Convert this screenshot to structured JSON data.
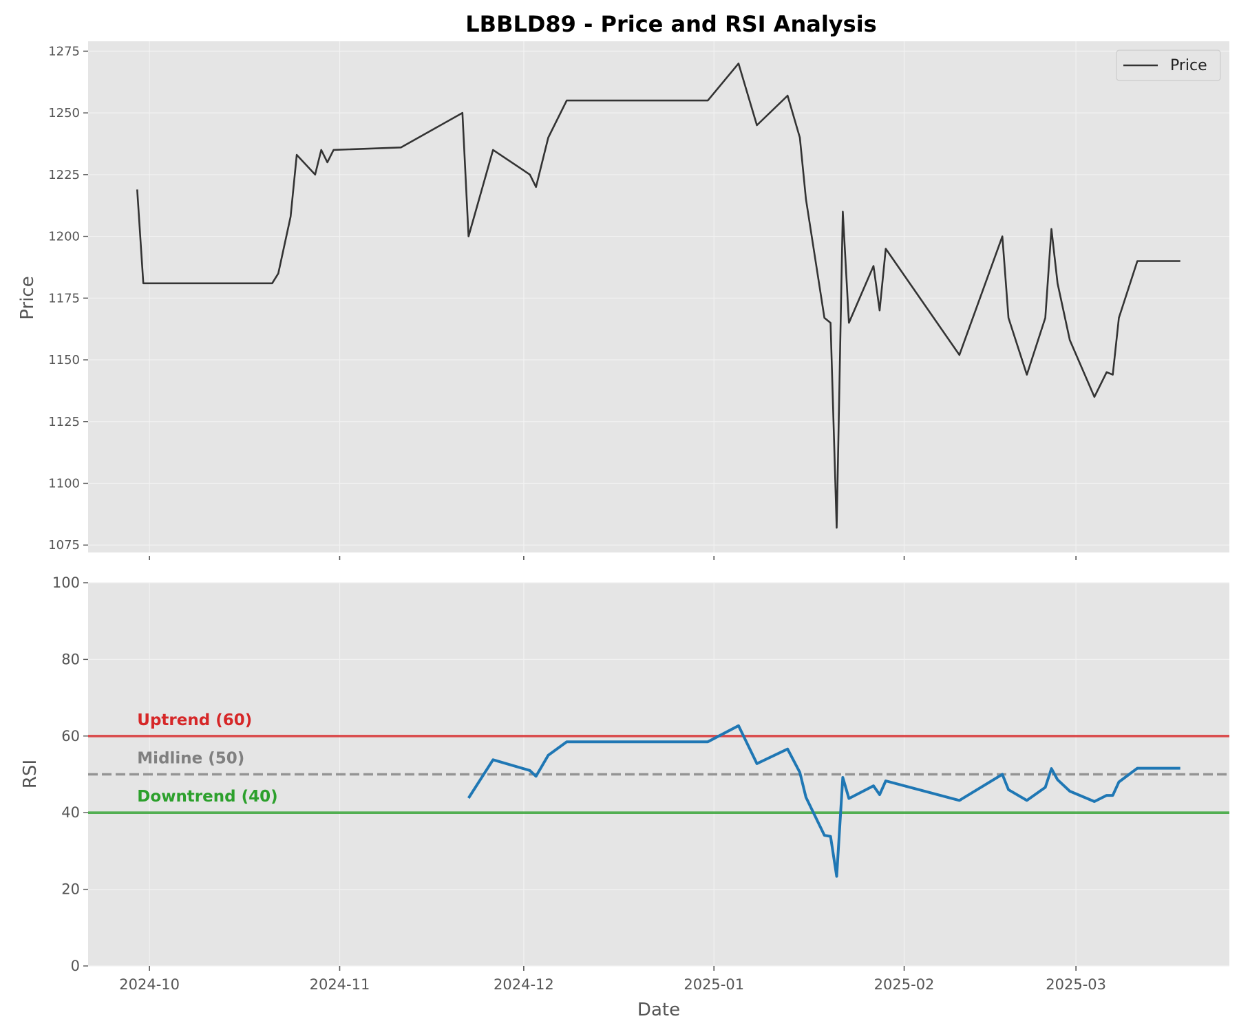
{
  "chart_data": [
    {
      "type": "line",
      "title": "LBBLD89 - Price and RSI Analysis",
      "ylabel": "Price",
      "xlim": [
        "2024-09-21",
        "2025-03-26"
      ],
      "ylim": [
        1072,
        1279
      ],
      "yticks": [
        1075,
        1100,
        1125,
        1150,
        1175,
        1200,
        1225,
        1250,
        1275
      ],
      "xticks": [
        "2024-10-01",
        "2024-11-01",
        "2024-12-01",
        "2025-01-01",
        "2025-02-01",
        "2025-03-01"
      ],
      "grid": true,
      "legend": "top-right",
      "series": [
        {
          "name": "Price",
          "color": "#333333",
          "points": [
            [
              "2024-09-29",
              1219
            ],
            [
              "2024-09-30",
              1181
            ],
            [
              "2024-10-21",
              1181
            ],
            [
              "2024-10-22",
              1185
            ],
            [
              "2024-10-24",
              1208
            ],
            [
              "2024-10-25",
              1233
            ],
            [
              "2024-10-28",
              1225
            ],
            [
              "2024-10-29",
              1235
            ],
            [
              "2024-10-30",
              1230
            ],
            [
              "2024-10-31",
              1235
            ],
            [
              "2024-11-11",
              1236
            ],
            [
              "2024-11-21",
              1250
            ],
            [
              "2024-11-22",
              1200
            ],
            [
              "2024-11-26",
              1235
            ],
            [
              "2024-12-02",
              1225
            ],
            [
              "2024-12-03",
              1220
            ],
            [
              "2024-12-05",
              1240
            ],
            [
              "2024-12-08",
              1255
            ],
            [
              "2024-12-31",
              1255
            ],
            [
              "2025-01-05",
              1270
            ],
            [
              "2025-01-08",
              1245
            ],
            [
              "2025-01-13",
              1257
            ],
            [
              "2025-01-15",
              1240
            ],
            [
              "2025-01-16",
              1215
            ],
            [
              "2025-01-19",
              1167
            ],
            [
              "2025-01-20",
              1165
            ],
            [
              "2025-01-21",
              1082
            ],
            [
              "2025-01-22",
              1210
            ],
            [
              "2025-01-23",
              1165
            ],
            [
              "2025-01-27",
              1188
            ],
            [
              "2025-01-28",
              1170
            ],
            [
              "2025-01-29",
              1195
            ],
            [
              "2025-02-10",
              1152
            ],
            [
              "2025-02-17",
              1200
            ],
            [
              "2025-02-18",
              1167
            ],
            [
              "2025-02-21",
              1144
            ],
            [
              "2025-02-24",
              1167
            ],
            [
              "2025-02-25",
              1203
            ],
            [
              "2025-02-26",
              1181
            ],
            [
              "2025-02-28",
              1158
            ],
            [
              "2025-03-04",
              1135
            ],
            [
              "2025-03-06",
              1145
            ],
            [
              "2025-03-07",
              1144
            ],
            [
              "2025-03-08",
              1167
            ],
            [
              "2025-03-11",
              1190
            ],
            [
              "2025-03-18",
              1190
            ]
          ]
        }
      ]
    },
    {
      "type": "line",
      "xlabel": "Date",
      "ylabel": "RSI",
      "xlim": [
        "2024-09-21",
        "2025-03-26"
      ],
      "ylim": [
        0,
        100
      ],
      "yticks": [
        0,
        20,
        40,
        60,
        80,
        100
      ],
      "xticks": [
        "2024-10-01",
        "2024-11-01",
        "2024-12-01",
        "2025-01-01",
        "2025-02-01",
        "2025-03-01"
      ],
      "xtick_labels": [
        "2024-10",
        "2024-11",
        "2024-12",
        "2025-01",
        "2025-02",
        "2025-03"
      ],
      "grid": true,
      "series": [
        {
          "color": "#1f77b4",
          "points": [
            [
              "2024-11-22",
              43.8
            ],
            [
              "2024-11-26",
              53.8
            ],
            [
              "2024-12-02",
              51
            ],
            [
              "2024-12-03",
              49.5
            ],
            [
              "2024-12-05",
              55
            ],
            [
              "2024-12-08",
              58.5
            ],
            [
              "2024-12-31",
              58.5
            ],
            [
              "2025-01-05",
              62.7
            ],
            [
              "2025-01-08",
              52.8
            ],
            [
              "2025-01-13",
              56.6
            ],
            [
              "2025-01-15",
              50.5
            ],
            [
              "2025-01-16",
              44
            ],
            [
              "2025-01-19",
              34.1
            ],
            [
              "2025-01-20",
              33.8
            ],
            [
              "2025-01-21",
              23.4
            ],
            [
              "2025-01-22",
              49.2
            ],
            [
              "2025-01-23",
              43.7
            ],
            [
              "2025-01-27",
              47
            ],
            [
              "2025-01-28",
              44.7
            ],
            [
              "2025-01-29",
              48.3
            ],
            [
              "2025-02-10",
              43.2
            ],
            [
              "2025-02-17",
              50
            ],
            [
              "2025-02-18",
              46
            ],
            [
              "2025-02-21",
              43.2
            ],
            [
              "2025-02-24",
              46.6
            ],
            [
              "2025-02-25",
              51.5
            ],
            [
              "2025-02-26",
              48.6
            ],
            [
              "2025-02-28",
              45.6
            ],
            [
              "2025-03-04",
              42.9
            ],
            [
              "2025-03-06",
              44.5
            ],
            [
              "2025-03-07",
              44.5
            ],
            [
              "2025-03-08",
              48
            ],
            [
              "2025-03-11",
              51.6
            ],
            [
              "2025-03-18",
              51.6
            ]
          ]
        }
      ],
      "reference_lines": [
        {
          "value": 60,
          "label": "Uptrend (60)",
          "color": "#d62728",
          "style": "solid"
        },
        {
          "value": 50,
          "label": "Midline (50)",
          "color": "#808080",
          "style": "dashed"
        },
        {
          "value": 40,
          "label": "Downtrend (40)",
          "color": "#2ca02c",
          "style": "solid"
        }
      ]
    }
  ]
}
